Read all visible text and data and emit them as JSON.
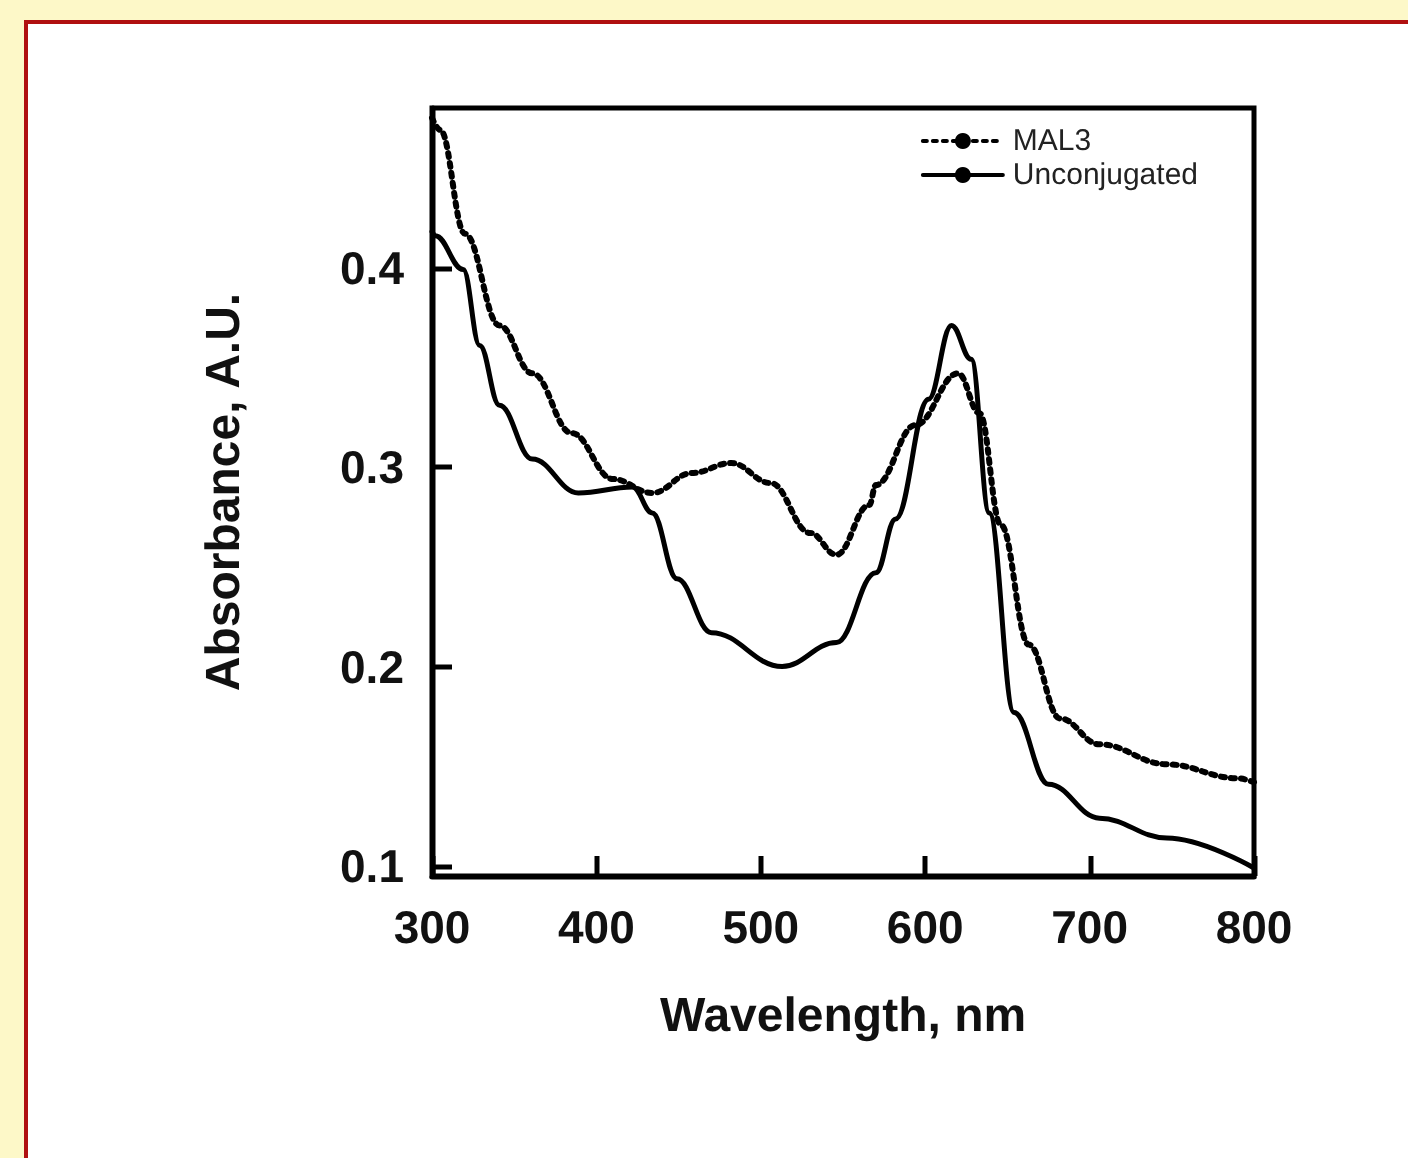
{
  "chart_data": {
    "type": "line",
    "xlabel": "Wavelength, nm",
    "ylabel": "Absorbance, A.U.",
    "xlim": [
      300,
      800
    ],
    "xticks": [
      300,
      400,
      500,
      600,
      700,
      800
    ],
    "ylim": [
      0.095,
      0.48
    ],
    "yticks": [
      0.1,
      0.2,
      0.3,
      0.4
    ],
    "grid": false,
    "legend": "top right",
    "marker": "none",
    "series": [
      {
        "name": "MAL3",
        "color": "#000000",
        "line_style": "dotted",
        "x": [
          300,
          305,
          320,
          341,
          361,
          385,
          410,
          434,
          458,
          482,
          506,
          530,
          546,
          566,
          570,
          594,
          620,
          633,
          646,
          663,
          682,
          706,
          747,
          790,
          800
        ],
        "values": [
          0.475,
          0.469,
          0.417,
          0.371,
          0.347,
          0.317,
          0.294,
          0.287,
          0.297,
          0.302,
          0.292,
          0.267,
          0.256,
          0.281,
          0.291,
          0.321,
          0.347,
          0.327,
          0.271,
          0.211,
          0.174,
          0.161,
          0.151,
          0.144,
          0.142
        ]
      },
      {
        "name": "Unconjugated",
        "color": "#000000",
        "line_style": "solid",
        "x": [
          300,
          302,
          319,
          329,
          341,
          361,
          389,
          422,
          434,
          449,
          470,
          513,
          546,
          570,
          582,
          602,
          616,
          628,
          639,
          654,
          675,
          706,
          747,
          800
        ],
        "values": [
          0.418,
          0.416,
          0.399,
          0.361,
          0.331,
          0.304,
          0.287,
          0.29,
          0.277,
          0.244,
          0.217,
          0.2,
          0.212,
          0.247,
          0.274,
          0.334,
          0.371,
          0.354,
          0.277,
          0.177,
          0.141,
          0.124,
          0.114,
          0.099
        ]
      }
    ]
  }
}
